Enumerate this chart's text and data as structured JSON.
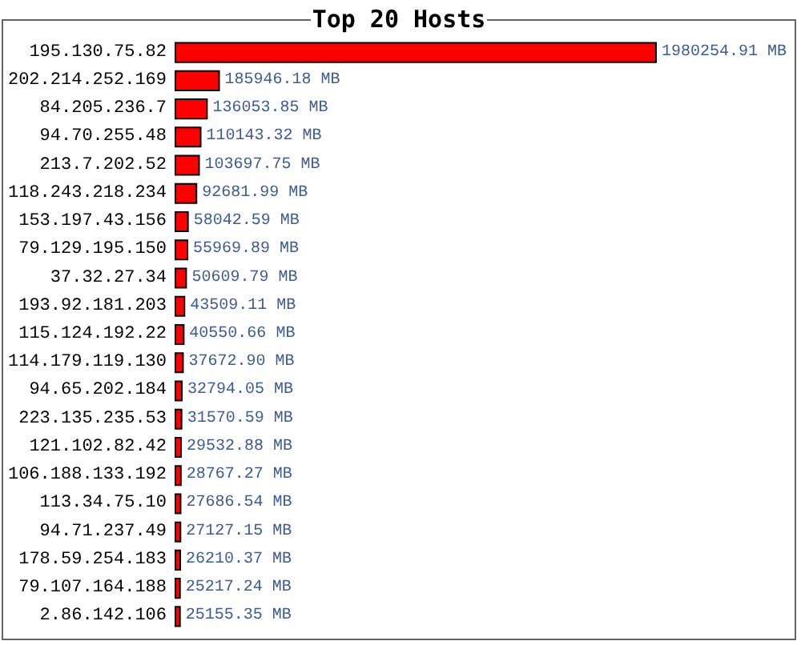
{
  "chart_data": {
    "type": "bar",
    "title": "Top 20 Hosts",
    "orientation": "horizontal",
    "color": "#ff0000",
    "categories": [
      "195.130.75.82",
      "202.214.252.169",
      "84.205.236.7",
      "94.70.255.48",
      "213.7.202.52",
      "118.243.218.234",
      "153.197.43.156",
      "79.129.195.150",
      "37.32.27.34",
      "193.92.181.203",
      "115.124.192.22",
      "114.179.119.130",
      "94.65.202.184",
      "223.135.235.53",
      "121.102.82.42",
      "106.188.133.192",
      "113.34.75.10",
      "94.71.237.49",
      "178.59.254.183",
      "79.107.164.188",
      "2.86.142.106"
    ],
    "values": [
      1980254.91,
      185946.18,
      136053.85,
      110143.32,
      103697.75,
      92681.99,
      58042.59,
      55969.89,
      50609.79,
      43509.11,
      40550.66,
      37672.9,
      32794.05,
      31570.59,
      29532.88,
      28767.27,
      27686.54,
      27127.15,
      26210.37,
      25217.24,
      25155.35
    ],
    "value_labels": [
      "1980254.91 MB",
      "185946.18 MB",
      "136053.85 MB",
      "110143.32 MB",
      "103697.75 MB",
      "92681.99 MB",
      "58042.59 MB",
      "55969.89 MB",
      "50609.79 MB",
      "43509.11 MB",
      "40550.66 MB",
      "37672.90 MB",
      "32794.05 MB",
      "31570.59 MB",
      "29532.88 MB",
      "28767.27 MB",
      "27686.54 MB",
      "27127.15 MB",
      "26210.37 MB",
      "25217.24 MB",
      "25155.35 MB"
    ]
  }
}
